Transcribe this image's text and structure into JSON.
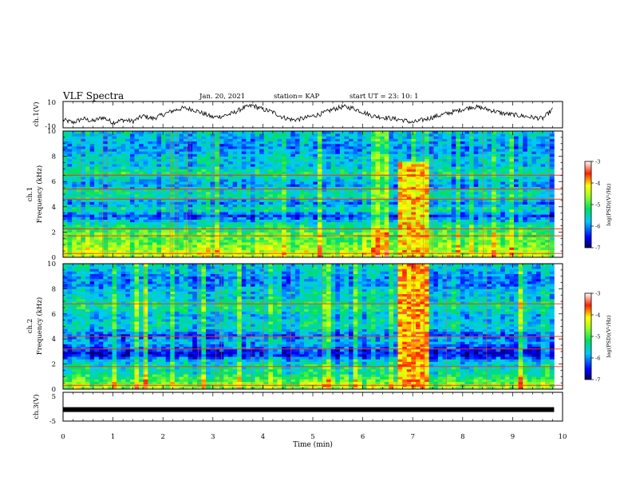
{
  "header": {
    "title": "VLF Spectra",
    "date": "Jan. 20, 2021",
    "station": "station= KAP",
    "start": "start UT =  23: 10: 1"
  },
  "chart_data": [
    {
      "id": "ch1-waveform",
      "type": "line",
      "ylabel": "ch.1(V)",
      "yticks": [
        "10",
        "-10"
      ],
      "ylim": [
        -10,
        10
      ],
      "xlim": [
        0,
        10
      ],
      "x_extent_min": [
        0,
        9.83
      ],
      "series": [
        {
          "color": "#000000",
          "x": [
            0,
            0.2,
            0.4,
            0.6,
            0.8,
            1.0,
            1.2,
            1.4,
            1.6,
            1.8,
            2.0,
            2.2,
            2.4,
            2.6,
            2.8,
            3.0,
            3.2,
            3.4,
            3.6,
            3.8,
            4.0,
            4.2,
            4.4,
            4.6,
            4.8,
            5.0,
            5.2,
            5.4,
            5.6,
            5.8,
            6.0,
            6.2,
            6.4,
            6.6,
            6.8,
            7.0,
            7.2,
            7.4,
            7.6,
            7.8,
            8.0,
            8.2,
            8.4,
            8.6,
            8.8,
            9.0,
            9.2,
            9.4,
            9.6,
            9.8
          ],
          "values": [
            -4,
            -6,
            -3,
            -5,
            -2,
            -6,
            -4,
            -5,
            -1,
            -3,
            0,
            3,
            5,
            4,
            1,
            -2,
            -1,
            1,
            5,
            7,
            4,
            2,
            -2,
            -4,
            -3,
            -1,
            1,
            4,
            6,
            5,
            2,
            -1,
            -2,
            -3,
            -4,
            -6,
            -4,
            -2,
            0,
            2,
            4,
            6,
            5,
            3,
            1,
            0,
            -1,
            -2,
            -3,
            4
          ]
        }
      ]
    },
    {
      "id": "ch1-spectrogram",
      "type": "heatmap",
      "ylabel": "ch.1\nFrequency (kHz)",
      "xlim": [
        0,
        10
      ],
      "ylim": [
        0,
        10
      ],
      "yticks": [
        "0",
        "2",
        "4",
        "6",
        "8",
        "10"
      ],
      "colorbar": {
        "label": "log(PSD)(V²/Hz)",
        "ticks": [
          "-3",
          "-4",
          "-5",
          "-6",
          "-7"
        ],
        "range": [
          -7,
          -3
        ]
      },
      "base_levels": {
        "freq_khz": [
          0.3,
          0.8,
          1.3,
          1.8,
          2.3,
          2.8,
          3.3,
          3.8,
          4.3,
          4.8,
          5.3,
          5.8,
          6.3,
          6.8,
          7.3,
          7.8,
          8.3,
          8.8,
          9.3,
          9.8
        ],
        "log_psd": [
          -4.4,
          -4.6,
          -4.9,
          -4.8,
          -5.2,
          -5.6,
          -6.3,
          -5.4,
          -6.0,
          -5.4,
          -5.5,
          -6.0,
          -5.6,
          -5.3,
          -5.8,
          -5.6,
          -5.9,
          -6.0,
          -5.8,
          -5.7
        ]
      },
      "lines_khz": [
        0.3,
        1.7,
        2.25,
        4.6,
        5.4,
        6.5
      ],
      "burst": {
        "t_min": [
          6.7,
          7.3
        ],
        "freq_khz": [
          0,
          7.5
        ],
        "log_psd": -4.1
      }
    },
    {
      "id": "ch2-spectrogram",
      "type": "heatmap",
      "ylabel": "ch.2\nFrequency (kHz)",
      "xlim": [
        0,
        10
      ],
      "ylim": [
        0,
        10
      ],
      "yticks": [
        "0",
        "2",
        "4",
        "6",
        "8",
        "10"
      ],
      "colorbar": {
        "label": "log(PSD)(V²/Hz)",
        "ticks": [
          "-3",
          "-4",
          "-5",
          "-6",
          "-7"
        ],
        "range": [
          -7,
          -3
        ]
      },
      "base_levels": {
        "freq_khz": [
          0.3,
          0.8,
          1.3,
          1.8,
          2.3,
          2.8,
          3.3,
          3.8,
          4.3,
          4.8,
          5.3,
          5.8,
          6.3,
          6.8,
          7.3,
          7.8,
          8.3,
          8.8,
          9.3,
          9.8
        ],
        "log_psd": [
          -4.6,
          -5.0,
          -5.4,
          -5.4,
          -5.8,
          -6.6,
          -6.2,
          -5.8,
          -6.2,
          -5.6,
          -5.5,
          -5.8,
          -5.4,
          -5.3,
          -5.7,
          -5.6,
          -6.0,
          -6.0,
          -5.8,
          -5.6
        ]
      },
      "lines_khz": [
        0.3,
        1.8,
        3.2,
        4.2,
        6.8
      ],
      "burst": {
        "t_min": [
          6.7,
          7.3
        ],
        "freq_khz": [
          0,
          10
        ],
        "log_psd": -3.9
      }
    },
    {
      "id": "ch3-waveform",
      "type": "line",
      "ylabel": "ch.3(V)",
      "yticks": [
        "5",
        "-5"
      ],
      "ylim": [
        -5,
        5
      ],
      "xlim": [
        0,
        10
      ],
      "xlabel": "Time (min)",
      "xticks": [
        "0",
        "1",
        "2",
        "3",
        "4",
        "5",
        "6",
        "7",
        "8",
        "9",
        "10"
      ],
      "series": [
        {
          "color": "#000000",
          "x": [
            0,
            9.83
          ],
          "values": [
            -1,
            -1
          ]
        }
      ]
    }
  ]
}
